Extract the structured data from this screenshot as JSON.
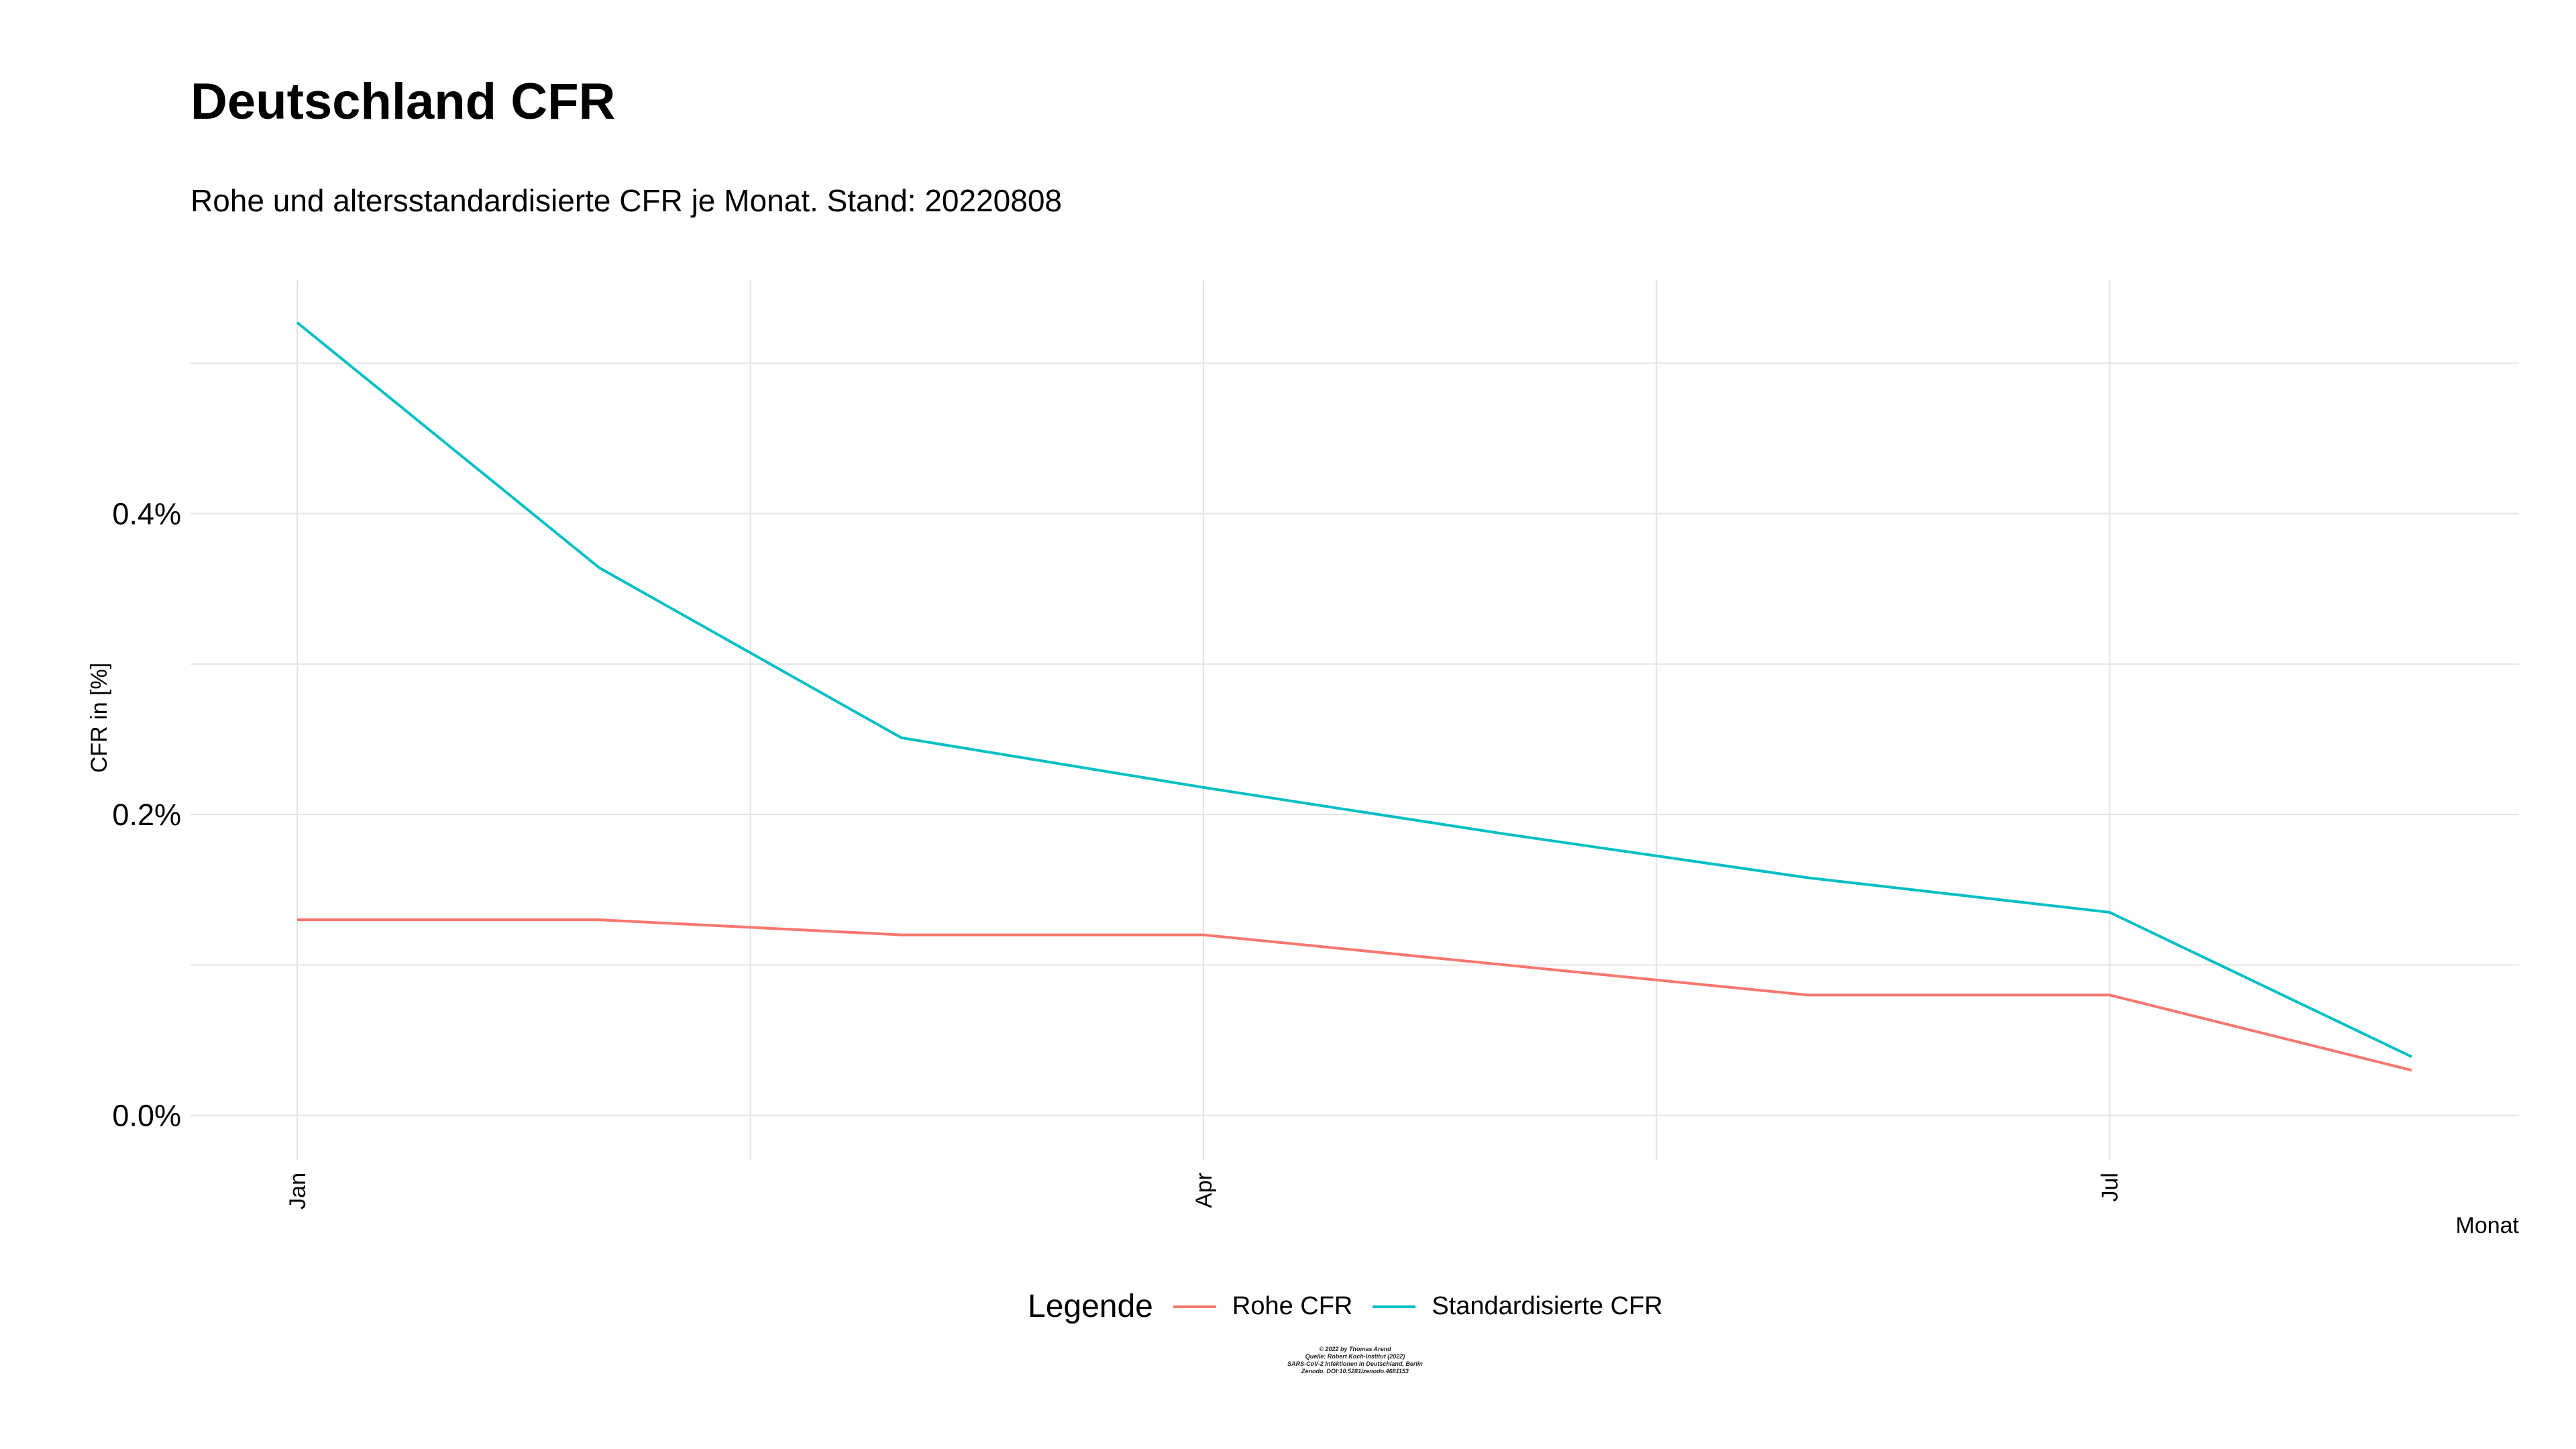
{
  "title": "Deutschland CFR",
  "subtitle": "Rohe und altersstandardisierte CFR je Monat. Stand: 20220808",
  "legend": {
    "title": "Legende",
    "items": [
      {
        "label": "Rohe CFR",
        "color": "#F8766D"
      },
      {
        "label": "Standardisierte CFR",
        "color": "#00BFC4"
      }
    ]
  },
  "caption": {
    "line1": "© 2022 by Thomas Arend",
    "line2": "Quelle: Robert Koch-Institut (2022)",
    "line3": "SARS-CoV-2 Infektionen in Deutschland, Berlin",
    "line4": "Zenodo. DOI:10.5281/zenodo.4681153"
  },
  "chart_data": {
    "type": "line",
    "xlabel": "Monat",
    "ylabel": "CFR in [%]",
    "x": [
      "2022-01",
      "2022-02",
      "2022-03",
      "2022-04",
      "2022-05",
      "2022-06",
      "2022-07",
      "2022-08"
    ],
    "x_tick_labels": [
      {
        "x": "2022-01",
        "label": "Jan"
      },
      {
        "x": "2022-04",
        "label": "Apr"
      },
      {
        "x": "2022-07",
        "label": "Jul"
      }
    ],
    "y_ticks": [
      0.0,
      0.2,
      0.4
    ],
    "y_tick_labels": [
      "0.0%",
      "0.2%",
      "0.4%"
    ],
    "ylim": [
      -0.03,
      0.555
    ],
    "series": [
      {
        "name": "Rohe CFR",
        "color": "#F8766D",
        "values": [
          0.13,
          0.13,
          0.12,
          0.12,
          0.1,
          0.08,
          0.08,
          0.03
        ]
      },
      {
        "name": "Standardisierte CFR",
        "color": "#00BFC4",
        "values": [
          0.527,
          0.364,
          0.251,
          0.218,
          0.187,
          0.158,
          0.135,
          0.039
        ]
      }
    ],
    "grid": true,
    "legend_position": "bottom"
  }
}
